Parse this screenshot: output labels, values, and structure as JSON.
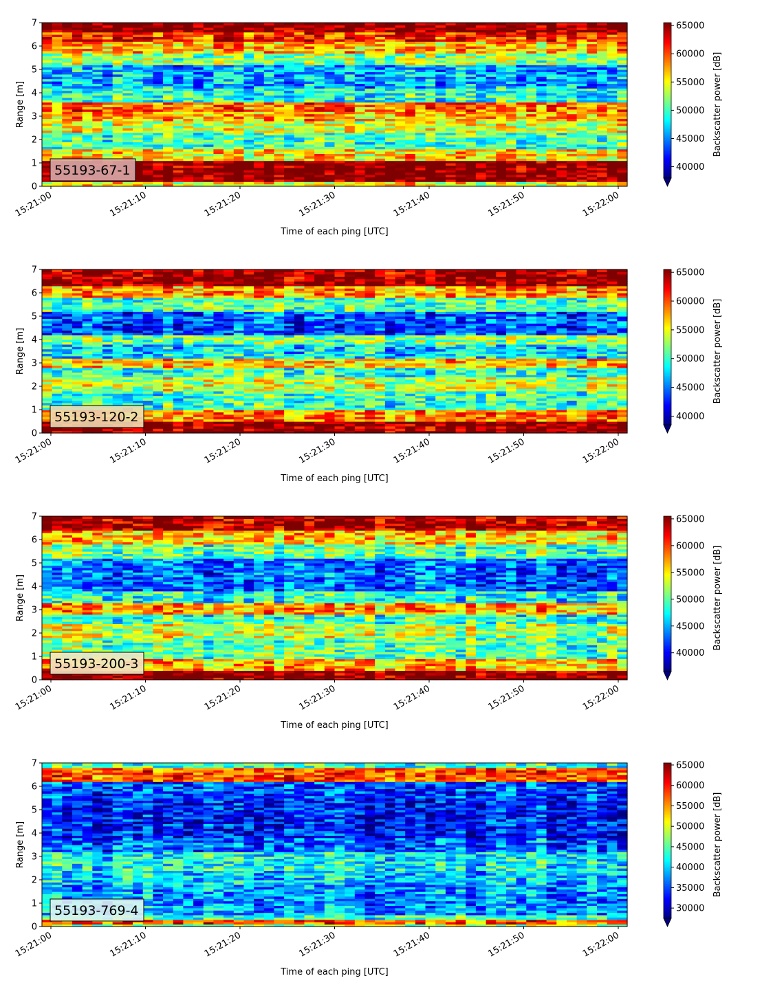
{
  "colors": {
    "colormap": "jet",
    "colormap_stops": [
      "#00007f",
      "#0000ff",
      "#007fff",
      "#00ffff",
      "#7fff7f",
      "#ffff00",
      "#ff7f00",
      "#ff0000",
      "#7f0000"
    ],
    "label_box_edge": "#000000"
  },
  "chart_data": [
    {
      "type": "heatmap",
      "label": "55193-67-1",
      "xlabel": "Time of each ping [UTC]",
      "ylabel": "Range [m]",
      "x_range": [
        "15:21:00",
        "15:22:00"
      ],
      "xticks": [
        "15:21:00",
        "15:21:10",
        "15:21:20",
        "15:21:30",
        "15:21:40",
        "15:21:50",
        "15:22:00"
      ],
      "ylim": [
        0,
        7
      ],
      "yticks": [
        "0",
        "1",
        "2",
        "3",
        "4",
        "5",
        "6",
        "7"
      ],
      "colorbar_label": "Backscatter power [dB]",
      "clim": [
        38000,
        65500
      ],
      "colorbar_ticks": [
        "40000",
        "45000",
        "50000",
        "55000",
        "60000",
        "65000"
      ],
      "colorbar_extend": "min",
      "label_box_color": "#d9a9a9",
      "bands": [
        {
          "range": [
            0,
            0.2
          ],
          "value": 55000
        },
        {
          "range": [
            0.2,
            1.1
          ],
          "value": 65500
        },
        {
          "range": [
            1.1,
            1.6
          ],
          "value": 56000
        },
        {
          "range": [
            1.6,
            2.3
          ],
          "value": 50000
        },
        {
          "range": [
            2.3,
            2.8
          ],
          "value": 54000
        },
        {
          "range": [
            2.8,
            3.2
          ],
          "value": 57000
        },
        {
          "range": [
            3.2,
            3.6
          ],
          "value": 59000
        },
        {
          "range": [
            3.6,
            4.2
          ],
          "value": 49000
        },
        {
          "range": [
            4.2,
            5.2
          ],
          "value": 46000
        },
        {
          "range": [
            5.2,
            5.7
          ],
          "value": 52000
        },
        {
          "range": [
            5.7,
            6.2
          ],
          "value": 57000
        },
        {
          "range": [
            6.2,
            6.6
          ],
          "value": 61000
        },
        {
          "range": [
            6.6,
            7.0
          ],
          "value": 65500
        }
      ]
    },
    {
      "type": "heatmap",
      "label": "55193-120-2",
      "xlabel": "Time of each ping [UTC]",
      "ylabel": "Range [m]",
      "x_range": [
        "15:21:00",
        "15:22:00"
      ],
      "xticks": [
        "15:21:00",
        "15:21:10",
        "15:21:20",
        "15:21:30",
        "15:21:40",
        "15:21:50",
        "15:22:00"
      ],
      "ylim": [
        0,
        7
      ],
      "yticks": [
        "0",
        "1",
        "2",
        "3",
        "4",
        "5",
        "6",
        "7"
      ],
      "colorbar_label": "Backscatter power [dB]",
      "clim": [
        38500,
        65500
      ],
      "colorbar_ticks": [
        "40000",
        "45000",
        "50000",
        "55000",
        "60000",
        "65000"
      ],
      "colorbar_extend": "min",
      "label_box_color": "#edd9b0",
      "bands": [
        {
          "range": [
            0,
            0.5
          ],
          "value": 65500
        },
        {
          "range": [
            0.5,
            1.0
          ],
          "value": 59000
        },
        {
          "range": [
            1.0,
            1.8
          ],
          "value": 50000
        },
        {
          "range": [
            1.8,
            2.4
          ],
          "value": 54000
        },
        {
          "range": [
            2.4,
            2.8
          ],
          "value": 50000
        },
        {
          "range": [
            2.8,
            3.2
          ],
          "value": 57000
        },
        {
          "range": [
            3.2,
            3.8
          ],
          "value": 48000
        },
        {
          "range": [
            3.8,
            4.2
          ],
          "value": 52000
        },
        {
          "range": [
            4.2,
            5.2
          ],
          "value": 44000
        },
        {
          "range": [
            5.2,
            5.8
          ],
          "value": 51000
        },
        {
          "range": [
            5.8,
            6.3
          ],
          "value": 58000
        },
        {
          "range": [
            6.3,
            7.0
          ],
          "value": 65000
        }
      ]
    },
    {
      "type": "heatmap",
      "label": "55193-200-3",
      "xlabel": "Time of each ping [UTC]",
      "ylabel": "Range [m]",
      "x_range": [
        "15:21:00",
        "15:22:00"
      ],
      "xticks": [
        "15:21:00",
        "15:21:10",
        "15:21:20",
        "15:21:30",
        "15:21:40",
        "15:21:50",
        "15:22:00"
      ],
      "ylim": [
        0,
        7
      ],
      "yticks": [
        "0",
        "1",
        "2",
        "3",
        "4",
        "5",
        "6",
        "7"
      ],
      "colorbar_label": "Backscatter power [dB]",
      "clim": [
        36500,
        65500
      ],
      "colorbar_ticks": [
        "40000",
        "45000",
        "50000",
        "55000",
        "60000",
        "65000"
      ],
      "colorbar_extend": "min",
      "label_box_color": "#f2e6c2",
      "bands": [
        {
          "range": [
            0,
            0.4
          ],
          "value": 65500
        },
        {
          "range": [
            0.4,
            0.9
          ],
          "value": 57000
        },
        {
          "range": [
            0.9,
            1.8
          ],
          "value": 50000
        },
        {
          "range": [
            1.8,
            2.4
          ],
          "value": 53000
        },
        {
          "range": [
            2.4,
            2.8
          ],
          "value": 49000
        },
        {
          "range": [
            2.8,
            3.3
          ],
          "value": 57000
        },
        {
          "range": [
            3.3,
            3.8
          ],
          "value": 48000
        },
        {
          "range": [
            3.8,
            5.2
          ],
          "value": 43000
        },
        {
          "range": [
            5.2,
            5.8
          ],
          "value": 50000
        },
        {
          "range": [
            5.8,
            6.4
          ],
          "value": 56000
        },
        {
          "range": [
            6.4,
            7.0
          ],
          "value": 64000
        }
      ]
    },
    {
      "type": "heatmap",
      "label": "55193-769-4",
      "xlabel": "Time of each ping [UTC]",
      "ylabel": "Range [m]",
      "x_range": [
        "15:21:00",
        "15:22:00"
      ],
      "xticks": [
        "15:21:00",
        "15:21:10",
        "15:21:20",
        "15:21:30",
        "15:21:40",
        "15:21:50",
        "15:22:00"
      ],
      "ylim": [
        0,
        7
      ],
      "yticks": [
        "0",
        "1",
        "2",
        "3",
        "4",
        "5",
        "6",
        "7"
      ],
      "colorbar_label": "Backscatter power [dB]",
      "clim": [
        27500,
        65500
      ],
      "colorbar_ticks": [
        "30000",
        "35000",
        "40000",
        "45000",
        "50000",
        "55000",
        "60000",
        "65000"
      ],
      "colorbar_extend": "min",
      "label_box_color": "#dff3f0",
      "bands": [
        {
          "range": [
            0,
            0.1
          ],
          "value": 48000
        },
        {
          "range": [
            0.1,
            0.3
          ],
          "value": 58000
        },
        {
          "range": [
            0.3,
            0.5
          ],
          "value": 44000
        },
        {
          "range": [
            0.5,
            1.8
          ],
          "value": 38000
        },
        {
          "range": [
            1.8,
            2.4
          ],
          "value": 40000
        },
        {
          "range": [
            2.4,
            3.2
          ],
          "value": 42000
        },
        {
          "range": [
            3.2,
            3.8
          ],
          "value": 36000
        },
        {
          "range": [
            3.8,
            5.5
          ],
          "value": 33000
        },
        {
          "range": [
            5.5,
            6.2
          ],
          "value": 35000
        },
        {
          "range": [
            6.2,
            6.8
          ],
          "value": 58000
        },
        {
          "range": [
            6.8,
            7.0
          ],
          "value": 44000
        }
      ]
    }
  ]
}
